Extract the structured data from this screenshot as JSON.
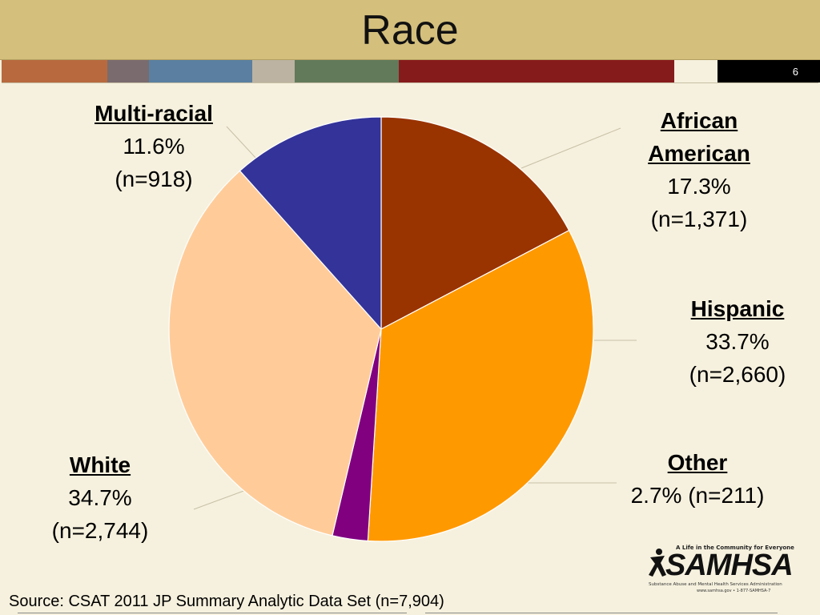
{
  "header": {
    "title": "Race",
    "page_number": "6",
    "stripe_colors": [
      "#b86a3e",
      "#7a6b6e",
      "#5a7fa0",
      "#bcb3a2",
      "#627a5a",
      "#861b1b"
    ]
  },
  "chart_data": {
    "type": "pie",
    "title": "Race",
    "start_angle_deg": 0,
    "direction": "clockwise",
    "slices": [
      {
        "name": "African American",
        "percent": 17.3,
        "n": 1371,
        "pct_label": "17.3%",
        "n_label": "(n=1,371)",
        "color": "#993300"
      },
      {
        "name": "Hispanic",
        "percent": 33.7,
        "n": 2660,
        "pct_label": "33.7%",
        "n_label": "(n=2,660)",
        "color": "#ff9900"
      },
      {
        "name": "Other",
        "percent": 2.7,
        "n": 211,
        "pct_label": "2.7% (n=211)",
        "n_label": "",
        "color": "#800080"
      },
      {
        "name": "White",
        "percent": 34.7,
        "n": 2744,
        "pct_label": "34.7%",
        "n_label": "(n=2,744)",
        "color": "#ffcc99"
      },
      {
        "name": "Multi-racial",
        "percent": 11.6,
        "n": 918,
        "pct_label": "11.6%",
        "n_label": "(n=918)",
        "color": "#333399"
      }
    ],
    "label_lines": {
      "african_american": [
        "African",
        "American"
      ]
    }
  },
  "footer": {
    "source": "Source: CSAT 2011 JP Summary Analytic Data Set (n=7,904)"
  },
  "logo": {
    "tagline": "A Life in the Community for Everyone",
    "wordmark": "SAMHSA",
    "subtitle": "Substance Abuse and Mental Health Services Administration",
    "url": "www.samhsa.gov • 1-877-SAMHSA-7"
  }
}
